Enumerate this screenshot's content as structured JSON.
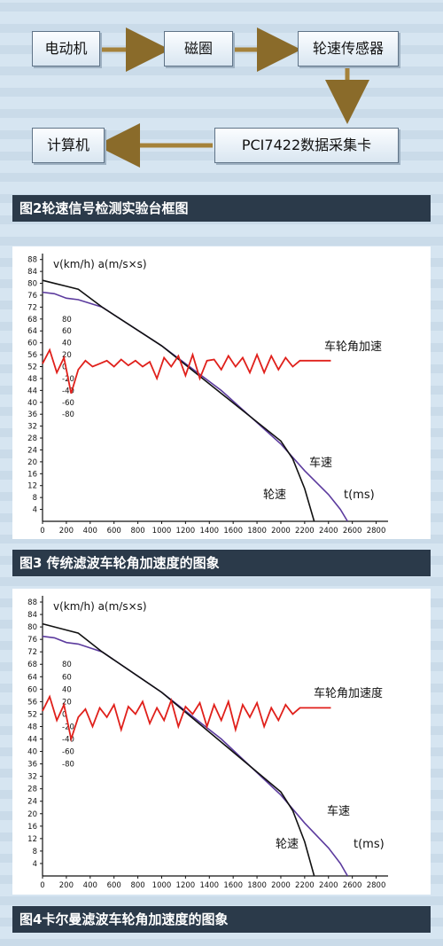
{
  "fig2": {
    "boxes": [
      "电动机",
      "磁圈",
      "轮速传感器",
      "PCI7422数据采集卡",
      "计算机"
    ],
    "caption": "图2轮速信号检测实验台框图"
  },
  "fig3": {
    "caption": "图3 传统滤波车轮角加速度的图象"
  },
  "fig4": {
    "caption": "图4卡尔曼滤波车轮角加速度的图象"
  },
  "colors": {
    "caption_bg": "#2b3a4a",
    "vehicle_speed": "#5c3b9e",
    "wheel_speed": "#111111",
    "acceleration": "#e0201b",
    "page_bg": "#d6e5f1"
  },
  "chart_data": [
    {
      "type": "line",
      "x_ticks": [
        0,
        200,
        400,
        600,
        800,
        1000,
        1200,
        1400,
        1600,
        1800,
        2000,
        2200,
        2400,
        2600,
        2800
      ],
      "y_ticks": [
        4,
        8,
        12,
        16,
        20,
        24,
        28,
        32,
        36,
        40,
        44,
        48,
        52,
        56,
        60,
        64,
        68,
        72,
        76,
        80,
        84,
        88
      ],
      "acc_ticks": [
        "80",
        "60",
        "40",
        "20",
        "0",
        "-20",
        "-40",
        "-60",
        "-80"
      ],
      "y_axis_label": "v(km/h)  a(m/s×s)",
      "x_axis_label": "t(ms)",
      "xlim": [
        0,
        2900
      ],
      "ylim": [
        0,
        90
      ],
      "series": [
        {
          "name": "车速",
          "axis": "left",
          "x": [
            0,
            100,
            200,
            300,
            500,
            1000,
            1500,
            2000,
            2200,
            2400,
            2500,
            2560
          ],
          "y": [
            77,
            76.5,
            75,
            74.5,
            72,
            59,
            44,
            26,
            17,
            9,
            4,
            0
          ]
        },
        {
          "name": "轮速",
          "axis": "left",
          "x": [
            0,
            100,
            200,
            300,
            500,
            1000,
            1500,
            2000,
            2100,
            2200,
            2280
          ],
          "y": [
            81,
            80,
            79,
            78,
            72,
            59,
            43,
            27,
            21,
            11,
            0
          ]
        },
        {
          "name": "车轮角加速",
          "axis": "right",
          "x": [
            0,
            60,
            120,
            180,
            240,
            300,
            360,
            420,
            480,
            540,
            600,
            660,
            720,
            780,
            840,
            900,
            960,
            1020,
            1080,
            1140,
            1200,
            1260,
            1320,
            1380,
            1440,
            1500,
            1560,
            1620,
            1680,
            1740,
            1800,
            1860,
            1920,
            1980,
            2040,
            2100,
            2160,
            2200
          ],
          "y": [
            5,
            28,
            -10,
            15,
            -45,
            -5,
            10,
            0,
            5,
            10,
            0,
            12,
            2,
            10,
            0,
            8,
            -20,
            15,
            0,
            18,
            -15,
            20,
            -20,
            10,
            12,
            -5,
            18,
            0,
            15,
            -10,
            20,
            -10,
            18,
            -5,
            15,
            0,
            10,
            10
          ]
        }
      ]
    },
    {
      "type": "line",
      "x_ticks": [
        0,
        200,
        400,
        600,
        800,
        1000,
        1200,
        1400,
        1600,
        1800,
        2000,
        2200,
        2400,
        2600,
        2800
      ],
      "y_ticks": [
        4,
        8,
        12,
        16,
        20,
        24,
        28,
        32,
        36,
        40,
        44,
        48,
        52,
        56,
        60,
        64,
        68,
        72,
        76,
        80,
        84,
        88
      ],
      "acc_ticks": [
        "80",
        "60",
        "40",
        "20",
        "0",
        "-20",
        "-40",
        "-60",
        "-80"
      ],
      "y_axis_label": "v(km/h)  a(m/s×s)",
      "x_axis_label": "t(ms)",
      "xlim": [
        0,
        2900
      ],
      "ylim": [
        0,
        90
      ],
      "series": [
        {
          "name": "车速",
          "axis": "left",
          "x": [
            0,
            100,
            200,
            300,
            500,
            1000,
            1500,
            2000,
            2200,
            2400,
            2500,
            2560
          ],
          "y": [
            77,
            76.5,
            75,
            74.5,
            72,
            59,
            44,
            26,
            17,
            9,
            4,
            0
          ]
        },
        {
          "name": "轮速",
          "axis": "left",
          "x": [
            0,
            100,
            200,
            300,
            500,
            1000,
            1500,
            2000,
            2100,
            2200,
            2280
          ],
          "y": [
            81,
            80,
            79,
            78,
            72,
            59,
            43,
            27,
            21,
            11,
            0
          ]
        },
        {
          "name": "车轮角加速度",
          "axis": "right",
          "x": [
            0,
            60,
            120,
            180,
            240,
            300,
            360,
            420,
            480,
            540,
            600,
            660,
            720,
            780,
            840,
            900,
            960,
            1020,
            1080,
            1140,
            1200,
            1260,
            1320,
            1380,
            1440,
            1500,
            1560,
            1620,
            1680,
            1740,
            1800,
            1860,
            1920,
            1980,
            2040,
            2100,
            2160,
            2200
          ],
          "y": [
            5,
            28,
            -10,
            15,
            -40,
            -5,
            8,
            -20,
            10,
            -5,
            15,
            -25,
            12,
            0,
            20,
            -15,
            10,
            -10,
            22,
            -20,
            12,
            0,
            18,
            -20,
            15,
            -10,
            20,
            -25,
            15,
            -5,
            18,
            -20,
            10,
            -10,
            15,
            0,
            10,
            10
          ]
        }
      ]
    }
  ]
}
